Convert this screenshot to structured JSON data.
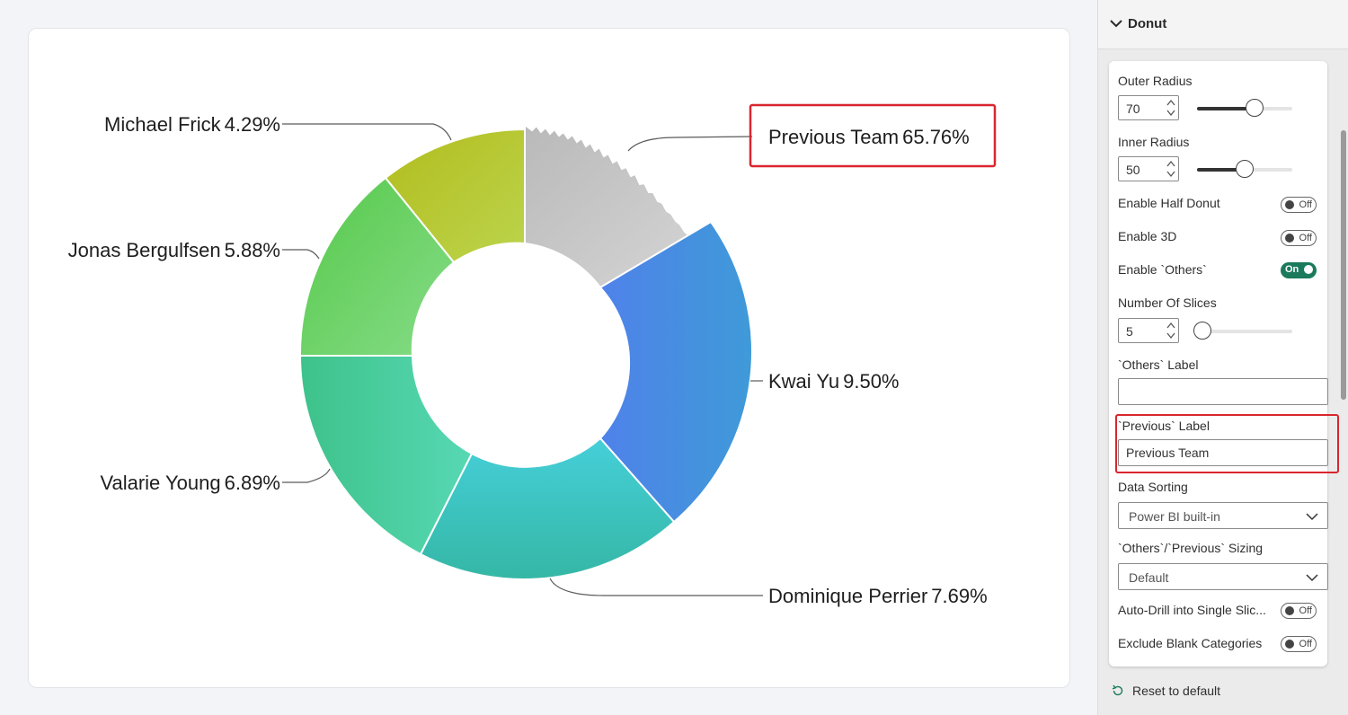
{
  "chart_data": {
    "type": "pie",
    "variant": "donut",
    "slices": [
      {
        "label": "Previous Team",
        "value_label": "65.76%",
        "color": "#c8c8c8"
      },
      {
        "label": "Kwai Yu",
        "value_label": "9.50%",
        "color": "#4a87e6"
      },
      {
        "label": "Dominique Perrier",
        "value_label": "7.69%",
        "color": "#45cbd6"
      },
      {
        "label": "Valarie Young",
        "value_label": "6.89%",
        "color": "#4fd6a8"
      },
      {
        "label": "Jonas Bergulfsen",
        "value_label": "5.88%",
        "color": "#6fd26f"
      },
      {
        "label": "Michael Frick",
        "value_label": "4.29%",
        "color": "#b6cc3c"
      }
    ],
    "highlighted": "Previous Team"
  },
  "panel": {
    "section_title": "Donut",
    "outer_radius": {
      "label": "Outer Radius",
      "value": "70",
      "slider_fraction": 0.6
    },
    "inner_radius": {
      "label": "Inner Radius",
      "value": "50",
      "slider_fraction": 0.5
    },
    "toggles": {
      "half_donut": {
        "label": "Enable Half Donut",
        "state": "Off"
      },
      "enable_3d": {
        "label": "Enable 3D",
        "state": "Off"
      },
      "enable_others": {
        "label": "Enable `Others`",
        "state": "On"
      },
      "auto_drill": {
        "label": "Auto-Drill into Single Slic...",
        "state": "Off"
      },
      "exclude_blank": {
        "label": "Exclude Blank Categories",
        "state": "Off"
      }
    },
    "number_of_slices": {
      "label": "Number Of Slices",
      "value": "5",
      "slider_fraction": 0.0
    },
    "others_label": {
      "label": "`Others` Label",
      "value": ""
    },
    "previous_label": {
      "label": "`Previous` Label",
      "value": "Previous Team"
    },
    "data_sorting": {
      "label": "Data Sorting",
      "value": "Power BI built-in"
    },
    "sizing": {
      "label": "`Others`/`Previous` Sizing",
      "value": "Default"
    },
    "reset_label": "Reset to default",
    "accent_color": "#1a7a5b",
    "highlight_color": "#d9262e"
  }
}
